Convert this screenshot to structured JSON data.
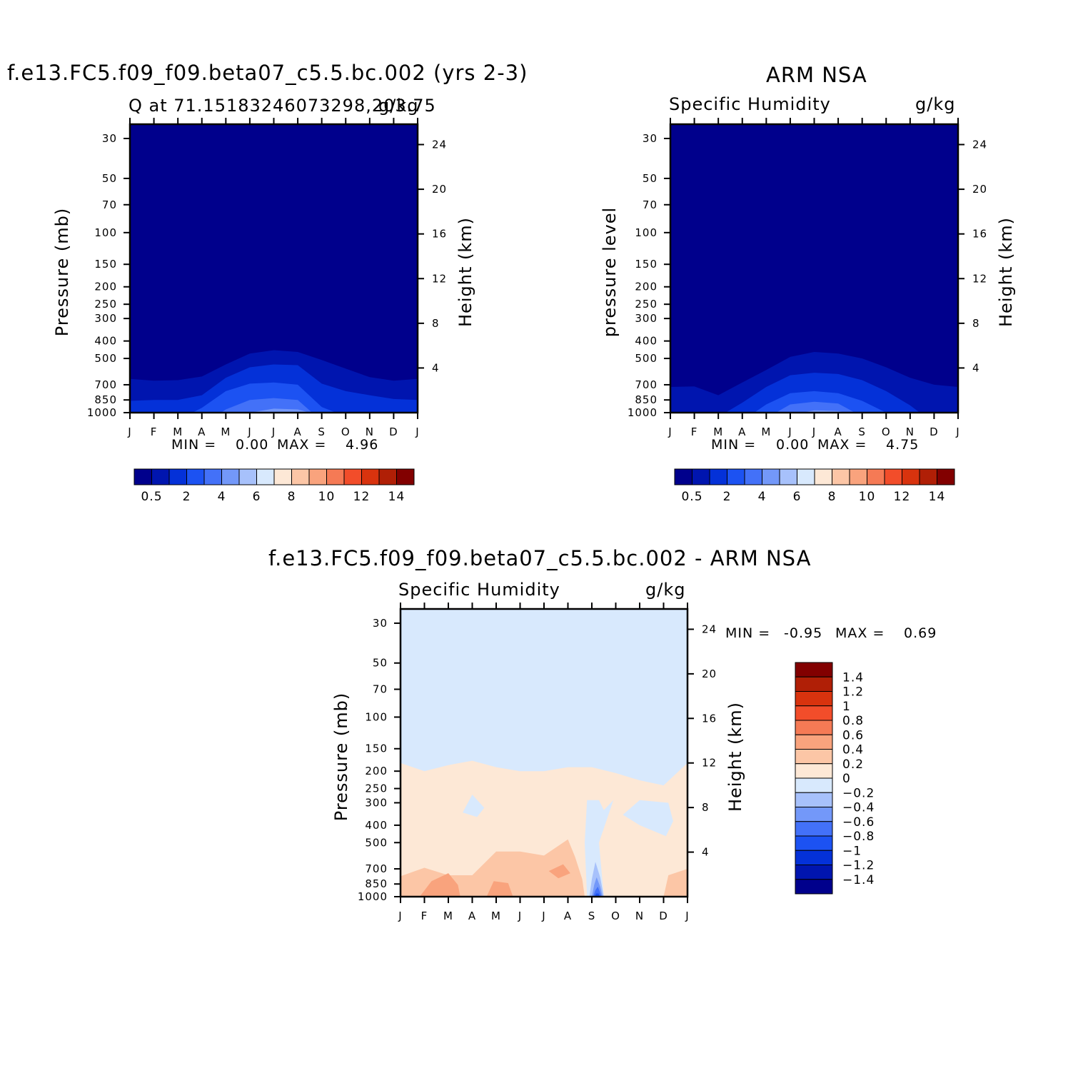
{
  "colors": {
    "abs_scale": [
      "#00008c",
      "#0015af",
      "#0431d8",
      "#1c52f2",
      "#4371f8",
      "#7398f9",
      "#a7c1fb",
      "#d8e9fd",
      "#fde8d6",
      "#fcc6a6",
      "#f9a37d",
      "#f57a55",
      "#f24d2a",
      "#d8330e",
      "#b01f06",
      "#820000"
    ],
    "diff_scale": [
      "#00008c",
      "#0015af",
      "#0431d8",
      "#1c52f2",
      "#4371f8",
      "#7398f9",
      "#a7c1fb",
      "#d8e9fd",
      "#fde8d6",
      "#fcc6a6",
      "#f9a37d",
      "#f57a55",
      "#f24d2a",
      "#d8330e",
      "#b01f06",
      "#820000"
    ]
  },
  "panels": {
    "model": {
      "title": "f.e13.FC5.f09_f09.beta07_c5.5.bc.002 (yrs 2-3)",
      "left_subtitle": "Q at 71.15183246073298,203.75",
      "right_subtitle": "g/kg",
      "ylabel_left": "Pressure (mb)",
      "ylabel_right": "Height (km)",
      "min_label": "MIN =",
      "min_value": "0.00",
      "max_label": "MAX =",
      "max_value": "4.96"
    },
    "obs": {
      "title": "ARM NSA",
      "left_subtitle": "Specific Humidity",
      "right_subtitle": "g/kg",
      "ylabel_left": "pressure level",
      "ylabel_right": "Height (km)",
      "min_label": "MIN =",
      "min_value": "0.00",
      "max_label": "MAX =",
      "max_value": "4.75"
    },
    "diff": {
      "title": "f.e13.FC5.f09_f09.beta07_c5.5.bc.002 - ARM NSA",
      "left_subtitle": "Specific Humidity",
      "right_subtitle": "g/kg",
      "ylabel_left": "Pressure (mb)",
      "ylabel_right": "Height (km)",
      "min_label": "MIN =",
      "min_value": "-0.95",
      "max_label": "MAX =",
      "max_value": "0.69"
    }
  },
  "chart_data": [
    {
      "type": "heatmap",
      "title": "f.e13.FC5.f09_f09.beta07_c5.5.bc.002 (yrs 2-3)",
      "subtitle": "Q at 71.15183246073298,203.75",
      "units": "g/kg",
      "xlabel": "",
      "ylabel": "Pressure (mb)",
      "ylabel_right": "Height (km)",
      "x_ticks": [
        "J",
        "F",
        "M",
        "A",
        "M",
        "J",
        "J",
        "A",
        "S",
        "O",
        "N",
        "D",
        "J"
      ],
      "y_ticks": [
        30,
        50,
        70,
        100,
        150,
        200,
        250,
        300,
        400,
        500,
        700,
        850,
        1000
      ],
      "y_right_ticks": [
        4,
        8,
        12,
        16,
        20,
        24
      ],
      "y_scale": "log",
      "ylim": [
        1000,
        25
      ],
      "colorbar_labels": [
        "0.5",
        "2",
        "4",
        "6",
        "8",
        "10",
        "12",
        "14"
      ],
      "min": 0.0,
      "max": 4.96,
      "contours": [
        {
          "level": 0.5,
          "points": [
            [
              0,
              650
            ],
            [
              1,
              665
            ],
            [
              2,
              660
            ],
            [
              3,
              630
            ],
            [
              4,
              540
            ],
            [
              5,
              470
            ],
            [
              6,
              450
            ],
            [
              7,
              460
            ],
            [
              8,
              510
            ],
            [
              9,
              570
            ],
            [
              10,
              635
            ],
            [
              11,
              665
            ],
            [
              12,
              650
            ]
          ]
        },
        {
          "level": 1,
          "points": [
            [
              0,
              860
            ],
            [
              1,
              850
            ],
            [
              2,
              850
            ],
            [
              3,
              800
            ],
            [
              4,
              640
            ],
            [
              5,
              560
            ],
            [
              6,
              540
            ],
            [
              7,
              545
            ],
            [
              8,
              690
            ],
            [
              9,
              760
            ],
            [
              10,
              800
            ],
            [
              11,
              840
            ],
            [
              12,
              850
            ]
          ]
        },
        {
          "level": 2,
          "points": [
            [
              2.6,
              1000
            ],
            [
              3,
              940
            ],
            [
              4,
              760
            ],
            [
              5,
              690
            ],
            [
              6,
              680
            ],
            [
              7,
              700
            ],
            [
              8,
              930
            ],
            [
              8.6,
              1000
            ]
          ]
        },
        {
          "level": 3,
          "points": [
            [
              3.8,
              1000
            ],
            [
              4,
              960
            ],
            [
              5,
              850
            ],
            [
              6,
              830
            ],
            [
              7,
              850
            ],
            [
              7.6,
              1000
            ]
          ]
        },
        {
          "level": 4,
          "points": [
            [
              5,
              1000
            ],
            [
              6,
              950
            ],
            [
              7,
              960
            ],
            [
              7.5,
              1000
            ]
          ]
        }
      ]
    },
    {
      "type": "heatmap",
      "title": "ARM NSA",
      "subtitle": "Specific Humidity",
      "units": "g/kg",
      "xlabel": "",
      "ylabel": "pressure level",
      "ylabel_right": "Height (km)",
      "x_ticks": [
        "J",
        "F",
        "M",
        "A",
        "M",
        "J",
        "J",
        "A",
        "S",
        "O",
        "N",
        "D",
        "J"
      ],
      "y_ticks": [
        30,
        50,
        70,
        100,
        150,
        200,
        250,
        300,
        400,
        500,
        700,
        850,
        1000
      ],
      "y_right_ticks": [
        4,
        8,
        12,
        16,
        20,
        24
      ],
      "y_scale": "log",
      "ylim": [
        1000,
        25
      ],
      "colorbar_labels": [
        "0.5",
        "2",
        "4",
        "6",
        "8",
        "10",
        "12",
        "14"
      ],
      "min": 0.0,
      "max": 4.75,
      "contours": [
        {
          "level": 0.5,
          "points": [
            [
              0,
              720
            ],
            [
              1,
              715
            ],
            [
              2,
              800
            ],
            [
              3,
              680
            ],
            [
              4,
              580
            ],
            [
              5,
              490
            ],
            [
              6,
              460
            ],
            [
              7,
              470
            ],
            [
              8,
              500
            ],
            [
              9,
              560
            ],
            [
              10,
              640
            ],
            [
              11,
              700
            ],
            [
              12,
              720
            ]
          ]
        },
        {
          "level": 1,
          "points": [
            [
              2.3,
              1000
            ],
            [
              3,
              880
            ],
            [
              4,
              720
            ],
            [
              5,
              620
            ],
            [
              6,
              600
            ],
            [
              7,
              610
            ],
            [
              8,
              660
            ],
            [
              9,
              760
            ],
            [
              10,
              910
            ],
            [
              10.4,
              1000
            ]
          ]
        },
        {
          "level": 2,
          "points": [
            [
              3.5,
              1000
            ],
            [
              4,
              900
            ],
            [
              5,
              780
            ],
            [
              6,
              760
            ],
            [
              7,
              780
            ],
            [
              8,
              860
            ],
            [
              9,
              1000
            ]
          ]
        },
        {
          "level": 3,
          "points": [
            [
              4.4,
              1000
            ],
            [
              5,
              900
            ],
            [
              6,
              870
            ],
            [
              7,
              890
            ],
            [
              7.7,
              1000
            ]
          ]
        },
        {
          "level": 4,
          "points": [
            [
              5.5,
              1000
            ],
            [
              6,
              970
            ],
            [
              7,
              980
            ],
            [
              7.3,
              1000
            ]
          ]
        }
      ]
    },
    {
      "type": "heatmap",
      "title": "f.e13.FC5.f09_f09.beta07_c5.5.bc.002 - ARM NSA",
      "subtitle": "Specific Humidity",
      "units": "g/kg",
      "xlabel": "",
      "ylabel": "Pressure (mb)",
      "ylabel_right": "Height (km)",
      "x_ticks": [
        "J",
        "F",
        "M",
        "A",
        "M",
        "J",
        "J",
        "A",
        "S",
        "O",
        "N",
        "D",
        "J"
      ],
      "y_ticks": [
        30,
        50,
        70,
        100,
        150,
        200,
        250,
        300,
        400,
        500,
        700,
        850,
        1000
      ],
      "y_right_ticks": [
        4,
        8,
        12,
        16,
        20,
        24
      ],
      "y_scale": "log",
      "ylim": [
        1000,
        25
      ],
      "colorbar_labels": [
        "1.4",
        "1.2",
        "1",
        "0.8",
        "0.6",
        "0.4",
        "0.2",
        "0",
        "-0.2",
        "-0.4",
        "-0.6",
        "-0.8",
        "-1",
        "-1.2",
        "-1.4"
      ],
      "min": -0.95,
      "max": 0.69,
      "regions": [
        {
          "level": 0.1,
          "points": [
            [
              0,
              180
            ],
            [
              1,
              200
            ],
            [
              2,
              185
            ],
            [
              3,
              175
            ],
            [
              4,
              190
            ],
            [
              5,
              200
            ],
            [
              6,
              200
            ],
            [
              7,
              190
            ],
            [
              8,
              190
            ],
            [
              9,
              205
            ],
            [
              10,
              225
            ],
            [
              11,
              240
            ],
            [
              12,
              180
            ],
            [
              12,
              1000
            ],
            [
              0,
              1000
            ]
          ]
        },
        {
          "level": -0.1,
          "points": [
            [
              7.8,
              1000
            ],
            [
              7.7,
              500
            ],
            [
              7.8,
              290
            ],
            [
              8.3,
              290
            ],
            [
              8.5,
              330
            ],
            [
              8.9,
              290
            ],
            [
              8.3,
              500
            ],
            [
              8.5,
              1000
            ]
          ]
        },
        {
          "level": -0.1,
          "points": [
            [
              9.3,
              350
            ],
            [
              10,
              290
            ],
            [
              11.2,
              300
            ],
            [
              11.4,
              380
            ],
            [
              11.1,
              460
            ],
            [
              10,
              400
            ]
          ]
        },
        {
          "level": -0.1,
          "points": [
            [
              2.6,
              340
            ],
            [
              3.0,
              270
            ],
            [
              3.5,
              320
            ],
            [
              3.2,
              360
            ]
          ]
        },
        {
          "level": 0.3,
          "points": [
            [
              0,
              770
            ],
            [
              1,
              690
            ],
            [
              2,
              760
            ],
            [
              3,
              760
            ],
            [
              4,
              560
            ],
            [
              5,
              560
            ],
            [
              6,
              590
            ],
            [
              7,
              480
            ],
            [
              7.3,
              600
            ],
            [
              7.6,
              800
            ],
            [
              7.7,
              1000
            ],
            [
              0,
              1000
            ]
          ]
        },
        {
          "level": 0.5,
          "points": [
            [
              0.8,
              1000
            ],
            [
              1.3,
              820
            ],
            [
              2,
              740
            ],
            [
              2.4,
              860
            ],
            [
              2.5,
              1000
            ]
          ]
        },
        {
          "level": 0.5,
          "points": [
            [
              3.6,
              1000
            ],
            [
              3.9,
              820
            ],
            [
              4.5,
              840
            ],
            [
              4.7,
              1000
            ]
          ]
        },
        {
          "level": 0.5,
          "points": [
            [
              6.2,
              720
            ],
            [
              6.8,
              660
            ],
            [
              7.1,
              740
            ],
            [
              6.6,
              790
            ]
          ]
        },
        {
          "level": 0.3,
          "points": [
            [
              11,
              1000
            ],
            [
              11.2,
              760
            ],
            [
              12,
              700
            ],
            [
              12,
              1000
            ]
          ]
        },
        {
          "level": -0.3,
          "points": [
            [
              7.9,
              1000
            ],
            [
              8.0,
              800
            ],
            [
              8.15,
              640
            ],
            [
              8.35,
              780
            ],
            [
              8.5,
              1000
            ]
          ]
        },
        {
          "level": -0.5,
          "points": [
            [
              8.0,
              1000
            ],
            [
              8.1,
              860
            ],
            [
              8.2,
              780
            ],
            [
              8.35,
              880
            ],
            [
              8.45,
              1000
            ]
          ]
        },
        {
          "level": -0.7,
          "points": [
            [
              8.05,
              1000
            ],
            [
              8.15,
              920
            ],
            [
              8.25,
              880
            ],
            [
              8.35,
              950
            ],
            [
              8.4,
              1000
            ]
          ]
        },
        {
          "level": -0.9,
          "points": [
            [
              8.12,
              1000
            ],
            [
              8.18,
              960
            ],
            [
              8.28,
              960
            ],
            [
              8.33,
              1000
            ]
          ]
        }
      ]
    }
  ]
}
